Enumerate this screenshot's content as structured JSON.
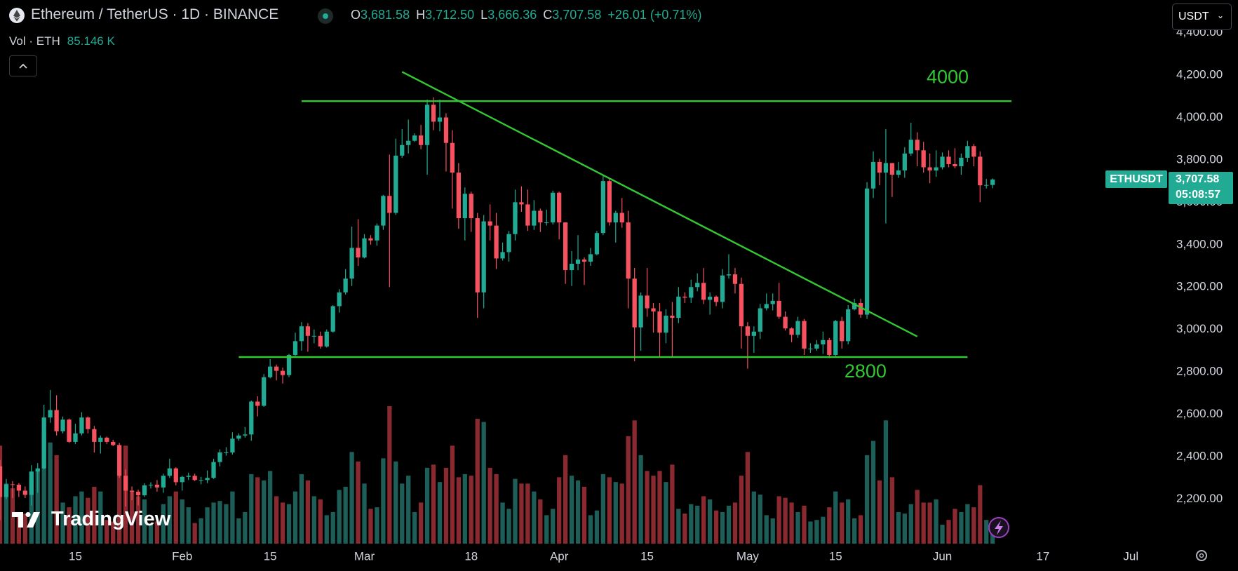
{
  "ui": {
    "title": "Ethereum / TetherUS · 1D · BINANCE",
    "ohlc": [
      {
        "key": "O",
        "value": "3,681.58"
      },
      {
        "key": "H",
        "value": "3,712.50"
      },
      {
        "key": "L",
        "value": "3,666.36"
      },
      {
        "key": "C",
        "value": "3,707.58"
      }
    ],
    "change": "+26.01 (+0.71%)",
    "volume_label": "Vol · ETH",
    "volume_value": "85.146 K",
    "currency": "USDT",
    "symbol_badge": "ETHUSDT",
    "price_badge": "3,707.58",
    "countdown": "05:08:57",
    "brand": "TradingView"
  },
  "chart_data": {
    "type": "candlestick",
    "x": [
      "Jan 3",
      "Jan 4",
      "Jan 5",
      "Jan 6",
      "Jan 7",
      "Jan 8",
      "Jan 9",
      "Jan 10",
      "Jan 11",
      "Jan 12",
      "Jan 13",
      "Jan 14",
      "Jan 15",
      "Jan 16",
      "Jan 17",
      "Jan 18",
      "Jan 19",
      "Jan 20",
      "Jan 21",
      "Jan 22",
      "Jan 23",
      "Jan 24",
      "Jan 25",
      "Jan 26",
      "Jan 27",
      "Jan 28",
      "Jan 29",
      "Jan 30",
      "Jan 31",
      "Feb 1",
      "Feb 2",
      "Feb 3",
      "Feb 4",
      "Feb 5",
      "Feb 6",
      "Feb 7",
      "Feb 8",
      "Feb 9",
      "Feb 10",
      "Feb 11",
      "Feb 12",
      "Feb 13",
      "Feb 14",
      "Feb 15",
      "Feb 16",
      "Feb 17",
      "Feb 18",
      "Feb 19",
      "Feb 20",
      "Feb 21",
      "Feb 22",
      "Feb 23",
      "Feb 24",
      "Feb 25",
      "Feb 26",
      "Feb 27",
      "Feb 28",
      "Feb 29",
      "Mar 1",
      "Mar 2",
      "Mar 3",
      "Mar 4",
      "Mar 5",
      "Mar 6",
      "Mar 7",
      "Mar 8",
      "Mar 9",
      "Mar 10",
      "Mar 11",
      "Mar 12",
      "Mar 13",
      "Mar 14",
      "Mar 15",
      "Mar 16",
      "Mar 17",
      "Mar 18",
      "Mar 19",
      "Mar 20",
      "Mar 21",
      "Mar 22",
      "Mar 23",
      "Mar 24",
      "Mar 25",
      "Mar 26",
      "Mar 27",
      "Mar 28",
      "Mar 29",
      "Mar 30",
      "Mar 31",
      "Apr 1",
      "Apr 2",
      "Apr 3",
      "Apr 4",
      "Apr 5",
      "Apr 6",
      "Apr 7",
      "Apr 8",
      "Apr 9",
      "Apr 10",
      "Apr 11",
      "Apr 12",
      "Apr 13",
      "Apr 14",
      "Apr 15",
      "Apr 16",
      "Apr 17",
      "Apr 18",
      "Apr 19",
      "Apr 20",
      "Apr 21",
      "Apr 22",
      "Apr 23",
      "Apr 24",
      "Apr 25",
      "Apr 26",
      "Apr 27",
      "Apr 28",
      "Apr 29",
      "Apr 30",
      "May 1",
      "May 2",
      "May 3",
      "May 4",
      "May 5",
      "May 6",
      "May 7",
      "May 8",
      "May 9",
      "May 10",
      "May 11",
      "May 12",
      "May 13",
      "May 14",
      "May 15",
      "May 16",
      "May 17",
      "May 18",
      "May 19",
      "May 20",
      "May 21",
      "May 22",
      "May 23",
      "May 24",
      "May 25",
      "May 26",
      "May 27",
      "May 28",
      "May 29",
      "May 30",
      "May 31",
      "Jun 1",
      "Jun 2",
      "Jun 3",
      "Jun 4",
      "Jun 5",
      "Jun 6",
      "Jun 7",
      "Jun 8",
      "Jun 9"
    ],
    "open": [
      2355,
      2210,
      2270,
      2268,
      2240,
      2220,
      2330,
      2345,
      2585,
      2620,
      2520,
      2575,
      2470,
      2510,
      2585,
      2530,
      2470,
      2490,
      2470,
      2455,
      2310,
      2240,
      2235,
      2218,
      2265,
      2268,
      2255,
      2310,
      2345,
      2280,
      2305,
      2310,
      2290,
      2290,
      2300,
      2375,
      2420,
      2420,
      2485,
      2500,
      2505,
      2660,
      2640,
      2775,
      2825,
      2805,
      2785,
      2880,
      2945,
      3015,
      2970,
      2970,
      2920,
      2990,
      3110,
      3175,
      3240,
      3385,
      3340,
      3430,
      3420,
      3490,
      3630,
      3550,
      3820,
      3870,
      3890,
      3915,
      3870,
      4060,
      3980,
      4000,
      3880,
      3740,
      3525,
      3640,
      3525,
      3175,
      3510,
      3490,
      3335,
      3365,
      3450,
      3600,
      3590,
      3490,
      3560,
      3505,
      3505,
      3645,
      3505,
      3280,
      3310,
      3330,
      3320,
      3355,
      3455,
      3700,
      3505,
      3550,
      3505,
      3240,
      3010,
      3160,
      3100,
      3085,
      2985,
      3065,
      3055,
      3155,
      3150,
      3200,
      3220,
      3140,
      3155,
      3130,
      3255,
      3260,
      3215,
      3015,
      2970,
      2990,
      3100,
      3120,
      3135,
      3060,
      3005,
      2975,
      3040,
      2910,
      2910,
      2930,
      2950,
      2880,
      3040,
      2945,
      3095,
      3125,
      3070,
      3665,
      3790,
      3740,
      3785,
      3730,
      3750,
      3830,
      3895,
      3845,
      3765,
      3750,
      3765,
      3815,
      3780,
      3770,
      3810,
      3865,
      3815,
      3680,
      3681.58
    ],
    "high": [
      2385,
      2295,
      2285,
      2275,
      2260,
      2360,
      2370,
      2645,
      2715,
      2690,
      2590,
      2580,
      2555,
      2610,
      2590,
      2545,
      2500,
      2495,
      2480,
      2465,
      2340,
      2260,
      2245,
      2275,
      2280,
      2290,
      2320,
      2390,
      2350,
      2310,
      2325,
      2320,
      2305,
      2335,
      2390,
      2435,
      2445,
      2515,
      2510,
      2540,
      2665,
      2685,
      2790,
      2860,
      2835,
      2820,
      2885,
      2985,
      3035,
      3030,
      3000,
      2990,
      3000,
      3115,
      3190,
      3285,
      3485,
      3520,
      3450,
      3445,
      3500,
      3635,
      3825,
      3900,
      3945,
      3990,
      3925,
      3965,
      4085,
      4095,
      4085,
      4020,
      3940,
      3785,
      3670,
      3650,
      3550,
      3540,
      3590,
      3550,
      3410,
      3465,
      3660,
      3675,
      3660,
      3610,
      3570,
      3565,
      3655,
      3650,
      3505,
      3370,
      3445,
      3340,
      3385,
      3465,
      3730,
      3710,
      3560,
      3620,
      3560,
      3290,
      3175,
      3290,
      3125,
      3125,
      3095,
      3130,
      3200,
      3175,
      3235,
      3265,
      3290,
      3175,
      3160,
      3285,
      3355,
      3290,
      3245,
      3035,
      3015,
      3120,
      3170,
      3170,
      3220,
      3085,
      3010,
      3060,
      3050,
      2935,
      2950,
      2990,
      2960,
      3045,
      3060,
      3115,
      3145,
      3145,
      3695,
      3840,
      3805,
      3945,
      3785,
      3790,
      3860,
      3975,
      3930,
      3885,
      3830,
      3845,
      3835,
      3845,
      3855,
      3830,
      3890,
      3875,
      3840,
      3710,
      3712.5
    ],
    "low": [
      2100,
      2200,
      2205,
      2210,
      2205,
      2170,
      2230,
      2340,
      2560,
      2500,
      2510,
      2465,
      2460,
      2500,
      2510,
      2420,
      2415,
      2460,
      2450,
      2300,
      2165,
      2195,
      2170,
      2210,
      2250,
      2235,
      2230,
      2300,
      2265,
      2240,
      2290,
      2285,
      2270,
      2275,
      2295,
      2355,
      2405,
      2410,
      2475,
      2490,
      2475,
      2590,
      2635,
      2770,
      2760,
      2745,
      2775,
      2875,
      2900,
      2895,
      2935,
      2910,
      2915,
      2985,
      3080,
      3165,
      3205,
      3300,
      3335,
      3400,
      3395,
      3470,
      3200,
      3540,
      3810,
      3830,
      3885,
      3850,
      3730,
      3940,
      3935,
      3745,
      3570,
      3475,
      3420,
      3460,
      3055,
      3100,
      3420,
      3285,
      3325,
      3320,
      3420,
      3555,
      3465,
      3470,
      3460,
      3490,
      3495,
      3425,
      3215,
      3205,
      3280,
      3210,
      3300,
      3350,
      3445,
      3490,
      3410,
      3480,
      3100,
      2850,
      2900,
      3060,
      2985,
      2870,
      2935,
      2870,
      3030,
      3125,
      3125,
      3180,
      3120,
      3070,
      3110,
      3100,
      3240,
      3170,
      2910,
      2815,
      2890,
      2955,
      3090,
      3090,
      3050,
      2995,
      2940,
      2960,
      2880,
      2890,
      2900,
      2885,
      2865,
      2875,
      2910,
      2930,
      3090,
      3055,
      3050,
      3620,
      3680,
      3500,
      3625,
      3715,
      3715,
      3820,
      3770,
      3740,
      3690,
      3720,
      3755,
      3765,
      3760,
      3730,
      3790,
      3770,
      3600,
      3665,
      3666.36
    ],
    "close": [
      2210,
      2270,
      2268,
      2240,
      2220,
      2330,
      2345,
      2585,
      2620,
      2520,
      2575,
      2470,
      2510,
      2585,
      2530,
      2470,
      2490,
      2470,
      2455,
      2310,
      2240,
      2235,
      2218,
      2265,
      2268,
      2255,
      2310,
      2345,
      2280,
      2305,
      2310,
      2290,
      2290,
      2300,
      2375,
      2420,
      2420,
      2485,
      2500,
      2505,
      2660,
      2640,
      2775,
      2825,
      2805,
      2785,
      2880,
      2945,
      3015,
      2970,
      2970,
      2920,
      2990,
      3110,
      3175,
      3240,
      3385,
      3340,
      3430,
      3420,
      3490,
      3630,
      3550,
      3820,
      3870,
      3890,
      3915,
      3870,
      4060,
      3980,
      4000,
      3880,
      3740,
      3525,
      3640,
      3525,
      3175,
      3510,
      3490,
      3335,
      3365,
      3450,
      3600,
      3590,
      3490,
      3560,
      3505,
      3505,
      3645,
      3505,
      3280,
      3310,
      3330,
      3320,
      3355,
      3455,
      3700,
      3505,
      3550,
      3505,
      3240,
      3010,
      3160,
      3100,
      3085,
      2985,
      3065,
      3055,
      3155,
      3150,
      3200,
      3220,
      3140,
      3155,
      3130,
      3255,
      3260,
      3215,
      3015,
      2970,
      2990,
      3100,
      3120,
      3135,
      3060,
      3005,
      2975,
      3040,
      2910,
      2910,
      2930,
      2950,
      2880,
      3040,
      2945,
      3095,
      3125,
      3070,
      3665,
      3790,
      3740,
      3785,
      3730,
      3750,
      3830,
      3895,
      3845,
      3765,
      3750,
      3765,
      3815,
      3780,
      3770,
      3810,
      3865,
      3815,
      3680,
      3681.58,
      3707.58
    ],
    "volume": [
      620,
      380,
      350,
      200,
      190,
      400,
      460,
      700,
      640,
      560,
      260,
      230,
      300,
      330,
      290,
      360,
      330,
      150,
      140,
      430,
      620,
      330,
      300,
      280,
      120,
      140,
      250,
      300,
      330,
      280,
      230,
      130,
      160,
      230,
      260,
      270,
      250,
      330,
      160,
      200,
      440,
      420,
      400,
      460,
      300,
      260,
      250,
      330,
      440,
      400,
      300,
      280,
      180,
      200,
      340,
      360,
      580,
      520,
      380,
      220,
      230,
      540,
      870,
      520,
      380,
      430,
      200,
      260,
      480,
      500,
      390,
      480,
      620,
      420,
      440,
      430,
      790,
      770,
      480,
      440,
      260,
      220,
      410,
      380,
      380,
      330,
      280,
      180,
      220,
      420,
      560,
      430,
      400,
      360,
      180,
      210,
      440,
      420,
      390,
      380,
      680,
      780,
      560,
      460,
      430,
      460,
      390,
      500,
      220,
      190,
      250,
      240,
      300,
      280,
      210,
      200,
      240,
      260,
      430,
      580,
      330,
      310,
      180,
      160,
      300,
      290,
      260,
      200,
      240,
      140,
      150,
      170,
      230,
      330,
      260,
      280,
      160,
      180,
      560,
      650,
      400,
      780,
      420,
      200,
      190,
      250,
      340,
      260,
      260,
      280,
      120,
      150,
      220,
      200,
      250,
      230,
      370,
      150,
      85.146
    ],
    "up_color": "#22ab94",
    "down_color": "#f7525f",
    "volume_up_color": "#1d5f58",
    "volume_down_color": "#8a2a30",
    "xlim": [
      "Jan 3",
      "Jul 7"
    ],
    "ylim": [
      1990,
      4554
    ],
    "vlim": [
      0,
      3440
    ],
    "grid": false,
    "yticks": [
      {
        "value": 2200,
        "label": "2,200.00"
      },
      {
        "value": 2400,
        "label": "2,400.00"
      },
      {
        "value": 2600,
        "label": "2,600.00"
      },
      {
        "value": 2800,
        "label": "2,800.00"
      },
      {
        "value": 3000,
        "label": "3,000.00"
      },
      {
        "value": 3200,
        "label": "3,200.00"
      },
      {
        "value": 3400,
        "label": "3,400.00"
      },
      {
        "value": 3600,
        "label": "3,600.00"
      },
      {
        "value": 3800,
        "label": "3,800.00"
      },
      {
        "value": 4000,
        "label": "4,000.00"
      },
      {
        "value": 4200,
        "label": "4,200.00"
      },
      {
        "value": 4400,
        "label": "4,400.00"
      }
    ],
    "xticks": [
      {
        "value": "Jan 15",
        "label": "15"
      },
      {
        "value": "Feb 1",
        "label": "Feb"
      },
      {
        "value": "Feb 15",
        "label": "15"
      },
      {
        "value": "Mar 1",
        "label": "Mar"
      },
      {
        "value": "Mar 18",
        "label": "18"
      },
      {
        "value": "Apr 1",
        "label": "Apr"
      },
      {
        "value": "Apr 15",
        "label": "15"
      },
      {
        "value": "May 1",
        "label": "May"
      },
      {
        "value": "May 15",
        "label": "15"
      },
      {
        "value": "Jun 1",
        "label": "Jun"
      },
      {
        "value": "Jun 17",
        "label": "17"
      },
      {
        "value": "Jul 1",
        "label": "Jul"
      }
    ],
    "line_color": "#32c832",
    "lines": [
      {
        "x": [
          "Feb 20",
          "Jun 12"
        ],
        "y": [
          4077,
          4077
        ],
        "label": "4000"
      },
      {
        "x": [
          "Feb 10",
          "Jun 5"
        ],
        "y": [
          2870,
          2870
        ],
        "label": "2800"
      },
      {
        "x": [
          "Mar 7",
          "May 28"
        ],
        "y": [
          4215,
          2967
        ]
      }
    ]
  }
}
